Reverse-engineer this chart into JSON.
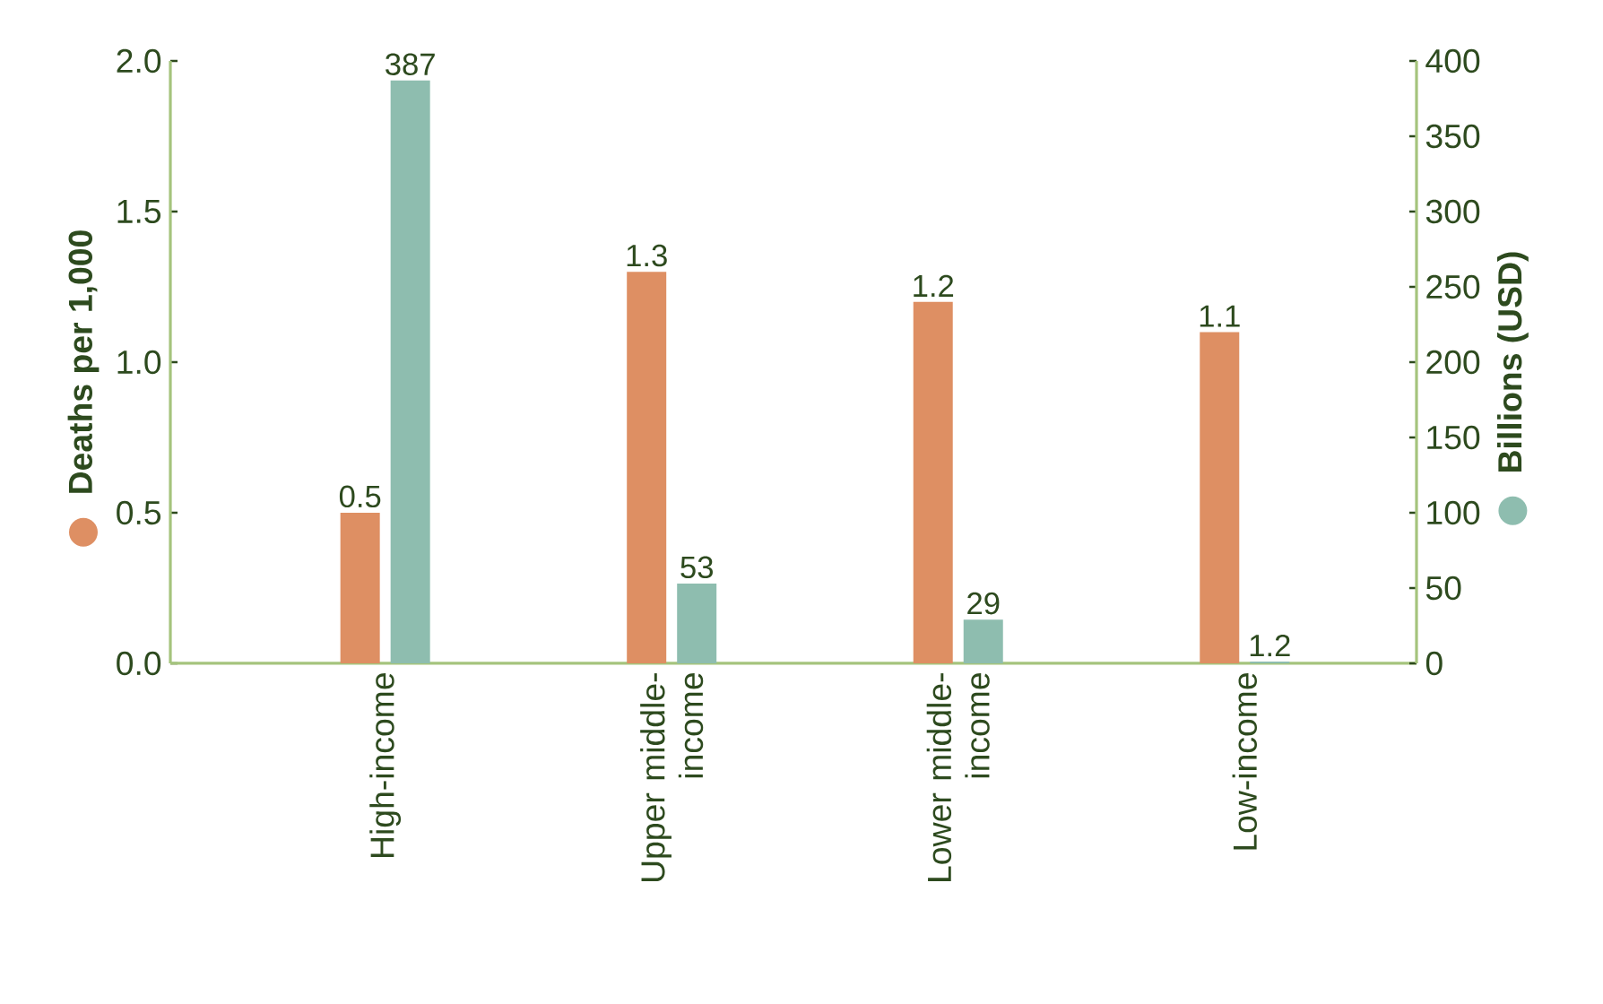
{
  "chart_data": {
    "type": "bar",
    "categories": [
      "High-income",
      "Upper middle-income",
      "Lower middle-income",
      "Low-income"
    ],
    "series": [
      {
        "color": "#de8f63",
        "values": [
          0.5,
          1.3,
          1.2,
          1.1
        ]
      },
      {
        "color": "#8ebdaf",
        "values": [
          387,
          53,
          29,
          1.2
        ],
        "axis": "y2"
      }
    ],
    "ylabel": "Deaths per 1,000",
    "y2label": "Billions (USD)",
    "ylim": [
      0,
      2
    ],
    "yticks": [
      {
        "value": 0,
        "label": "0.0"
      },
      0.5,
      {
        "value": 1,
        "label": "1.0"
      },
      1.5,
      {
        "value": 2,
        "label": "2.0"
      }
    ],
    "y2lim": [
      0,
      400
    ],
    "y2ticks": [
      0,
      50,
      100,
      150,
      200,
      250,
      300,
      350,
      400
    ],
    "data_labels": true
  }
}
